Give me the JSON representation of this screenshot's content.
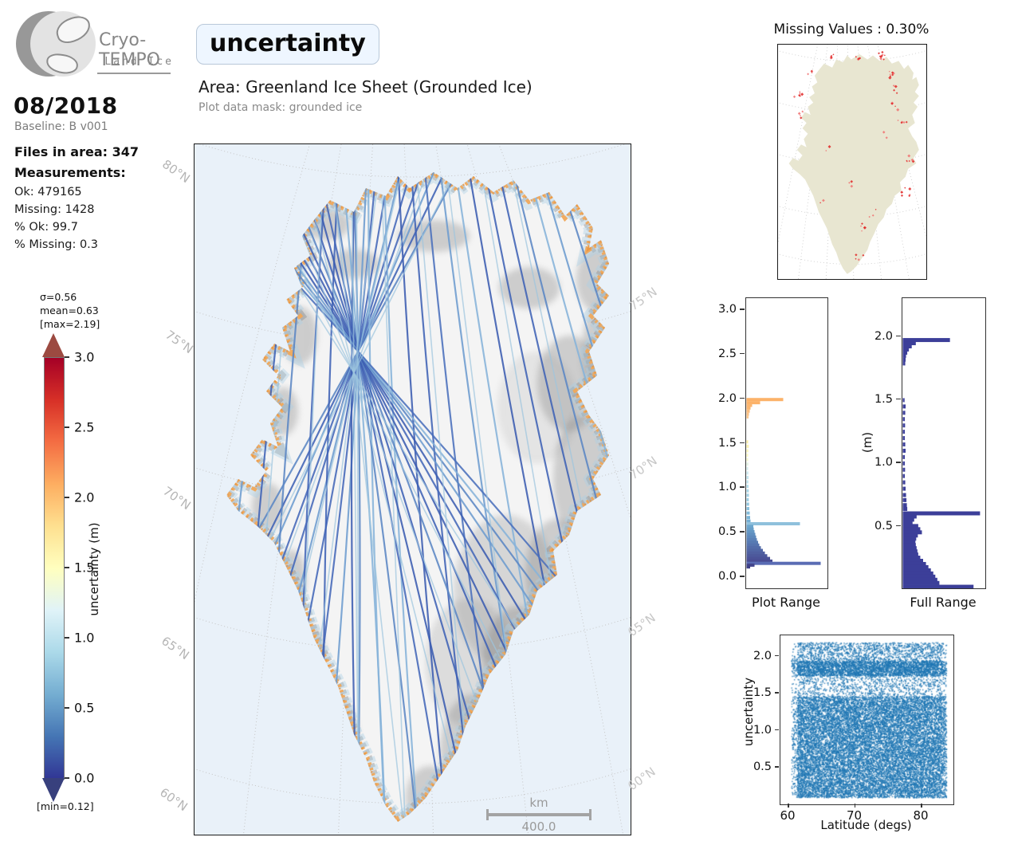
{
  "header": {
    "logo_title": "Cryo-TEMPO",
    "logo_subtitle": "Land Ice",
    "metric_title": "uncertainty",
    "area_title": "Area: Greenland Ice Sheet (Grounded Ice)",
    "mask_subtitle": "Plot data mask: grounded ice"
  },
  "sidebar": {
    "date": "08/2018",
    "baseline": "Baseline: B v001",
    "files_line": "Files in area: 347",
    "measurements_label": "Measurements:",
    "stats": [
      "Ok: 479165",
      "Missing: 1428",
      "% Ok: 99.7",
      "% Missing: 0.3"
    ]
  },
  "colorbar": {
    "sigma": "σ=0.56",
    "mean": "mean=0.63",
    "max": "[max=2.19]",
    "min": "[min=0.12]",
    "label": "uncertainty (m)",
    "ticks": [
      "3.0",
      "2.5",
      "2.0",
      "1.5",
      "1.0",
      "0.5",
      "0.0"
    ],
    "gradient": [
      "#a50026",
      "#d73027",
      "#f46d43",
      "#fdae61",
      "#fee090",
      "#ffffbf",
      "#e0f3f8",
      "#abd9e9",
      "#74add1",
      "#4575b4",
      "#313695"
    ],
    "over_color": "#9c4a41",
    "under_color": "#38407d"
  },
  "map": {
    "lat_labels_left": [
      "80°N",
      "75°N",
      "70°N",
      "65°N",
      "60°N"
    ],
    "lat_labels_right": [
      "75°N",
      "70°N",
      "65°N",
      "60°N"
    ],
    "scale_unit": "km",
    "scale_value": "400.0",
    "ocean_color": "#e9f1f9",
    "ice_color": "#f4f4f4",
    "track_color": "#3f5fb0",
    "coast_color": "#f0a85a"
  },
  "missing_map": {
    "title": "Missing Values : 0.30%",
    "land_color": "#e8e6d1",
    "dot_color": "#e02424"
  },
  "chart_data": [
    {
      "type": "heatmap",
      "name": "main-map-uncertainty",
      "title": "uncertainty",
      "area": "Greenland Ice Sheet (Grounded Ice)",
      "variable": "uncertainty (m)",
      "value_range": [
        0.0,
        3.0
      ],
      "stats": {
        "sigma": 0.56,
        "mean": 0.63,
        "max": 2.19,
        "min": 0.12
      },
      "legend_position": "left-colorbar",
      "scale_bar_km": 400.0,
      "latitude_gridlines": [
        80,
        75,
        70,
        65,
        60
      ]
    },
    {
      "type": "bar",
      "name": "plot-range-histogram",
      "title": "Plot Range",
      "orientation": "horizontal",
      "ylim": [
        -0.12,
        3.12
      ],
      "yticks": [
        0.0,
        0.5,
        1.0,
        1.5,
        2.0,
        2.5,
        3.0
      ],
      "grid": false,
      "bars": [
        [
          1.995,
          0.46,
          "#fcb269"
        ],
        [
          1.96,
          0.17,
          "#fcb269"
        ],
        [
          1.93,
          0.07,
          "#fbb671"
        ],
        [
          1.9,
          0.05,
          "#fbb671"
        ],
        [
          1.865,
          0.04,
          "#fbbd7e"
        ],
        [
          1.83,
          0.03,
          "#fbc184"
        ],
        [
          1.8,
          0.025,
          "#fbc88f"
        ],
        [
          1.52,
          0.02,
          "#fcec9f"
        ],
        [
          1.47,
          0.028,
          "#fdf2ad"
        ],
        [
          1.42,
          0.022,
          "#fef7b9"
        ],
        [
          1.37,
          0.02,
          "#fefac2"
        ],
        [
          1.32,
          0.02,
          "#f4f7cd"
        ],
        [
          1.27,
          0.022,
          "#e2f2e2"
        ],
        [
          1.22,
          0.02,
          "#d5edec"
        ],
        [
          1.17,
          0.022,
          "#cbe9f0"
        ],
        [
          1.12,
          0.025,
          "#c2e5ee"
        ],
        [
          1.07,
          0.022,
          "#bae0ec"
        ],
        [
          1.02,
          0.025,
          "#b2dcea"
        ],
        [
          0.97,
          0.028,
          "#aad7e8"
        ],
        [
          0.92,
          0.03,
          "#a2d2e6"
        ],
        [
          0.87,
          0.028,
          "#9acde3"
        ],
        [
          0.82,
          0.032,
          "#92c7e0"
        ],
        [
          0.77,
          0.035,
          "#8ac1dd"
        ],
        [
          0.72,
          0.04,
          "#82bbd9"
        ],
        [
          0.67,
          0.045,
          "#7ab4d6"
        ],
        [
          0.63,
          0.05,
          "#73add2"
        ],
        [
          0.6,
          0.67,
          "#8fc0dc"
        ],
        [
          0.57,
          0.085,
          "#6da6cd"
        ],
        [
          0.54,
          0.09,
          "#689fc9"
        ],
        [
          0.51,
          0.1,
          "#6497c4"
        ],
        [
          0.48,
          0.11,
          "#608fc0"
        ],
        [
          0.45,
          0.12,
          "#5d88bb"
        ],
        [
          0.42,
          0.13,
          "#5a81b7"
        ],
        [
          0.39,
          0.145,
          "#577ab2"
        ],
        [
          0.36,
          0.16,
          "#5573ae"
        ],
        [
          0.33,
          0.18,
          "#536ca9"
        ],
        [
          0.3,
          0.205,
          "#5166a5"
        ],
        [
          0.27,
          0.23,
          "#4f5fa0"
        ],
        [
          0.24,
          0.26,
          "#4d599c"
        ],
        [
          0.21,
          0.295,
          "#4b5297"
        ],
        [
          0.18,
          0.325,
          "#494c93"
        ],
        [
          0.155,
          0.93,
          "#5a6cb4"
        ],
        [
          0.135,
          0.1,
          "#42458c"
        ],
        [
          0.115,
          0.045,
          "#3d3f87"
        ]
      ]
    },
    {
      "type": "bar",
      "name": "full-range-histogram",
      "title": "Full Range",
      "ylabel": "(m)",
      "orientation": "horizontal",
      "ylim": [
        0.0,
        2.3
      ],
      "yticks": [
        0.5,
        1.0,
        1.5,
        2.0
      ],
      "bar_color": "#3c3f99",
      "grid": false,
      "bars": [
        [
          1.975,
          0.58
        ],
        [
          1.95,
          0.16
        ],
        [
          1.925,
          0.11
        ],
        [
          1.9,
          0.075
        ],
        [
          1.875,
          0.055
        ],
        [
          1.85,
          0.04
        ],
        [
          1.82,
          0.035
        ],
        [
          1.79,
          0.03
        ],
        [
          1.5,
          0.022
        ],
        [
          1.45,
          0.035
        ],
        [
          1.4,
          0.03
        ],
        [
          1.35,
          0.025
        ],
        [
          1.3,
          0.028
        ],
        [
          1.25,
          0.025
        ],
        [
          1.2,
          0.025
        ],
        [
          1.15,
          0.03
        ],
        [
          1.1,
          0.035
        ],
        [
          1.05,
          0.025
        ],
        [
          1.0,
          0.025
        ],
        [
          0.95,
          0.028
        ],
        [
          0.9,
          0.025
        ],
        [
          0.85,
          0.03
        ],
        [
          0.8,
          0.035
        ],
        [
          0.75,
          0.04
        ],
        [
          0.71,
          0.045
        ],
        [
          0.67,
          0.05
        ],
        [
          0.64,
          0.055
        ],
        [
          0.605,
          0.95
        ],
        [
          0.58,
          0.17
        ],
        [
          0.555,
          0.14
        ],
        [
          0.53,
          0.12
        ],
        [
          0.505,
          0.19
        ],
        [
          0.48,
          0.215
        ],
        [
          0.455,
          0.235
        ],
        [
          0.43,
          0.185
        ],
        [
          0.405,
          0.165
        ],
        [
          0.38,
          0.155
        ],
        [
          0.355,
          0.16
        ],
        [
          0.33,
          0.17
        ],
        [
          0.305,
          0.18
        ],
        [
          0.28,
          0.19
        ],
        [
          0.255,
          0.215
        ],
        [
          0.23,
          0.25
        ],
        [
          0.205,
          0.285
        ],
        [
          0.18,
          0.315
        ],
        [
          0.155,
          0.345
        ],
        [
          0.13,
          0.375
        ],
        [
          0.105,
          0.4
        ],
        [
          0.08,
          0.425
        ],
        [
          0.055,
          0.45
        ],
        [
          0.025,
          0.87
        ]
      ]
    },
    {
      "type": "scatter",
      "name": "uncertainty-vs-latitude",
      "xlabel": "Latitude (degs)",
      "ylabel": "uncertainty",
      "xticks": [
        60,
        70,
        80
      ],
      "yticks": [
        0.5,
        1.0,
        1.5,
        2.0
      ],
      "x_range": [
        60.4,
        83.7
      ],
      "y_range": [
        0.1,
        2.2
      ],
      "marker_color": "#1f77b4",
      "density_bands": [
        {
          "y_min": 0.1,
          "y_max": 1.47,
          "density": "high"
        },
        {
          "y_min": 1.47,
          "y_max": 1.75,
          "density": "low"
        },
        {
          "y_min": 1.75,
          "y_max": 1.95,
          "density": "high"
        },
        {
          "y_min": 1.95,
          "y_max": 2.2,
          "density": "medium"
        }
      ]
    }
  ]
}
